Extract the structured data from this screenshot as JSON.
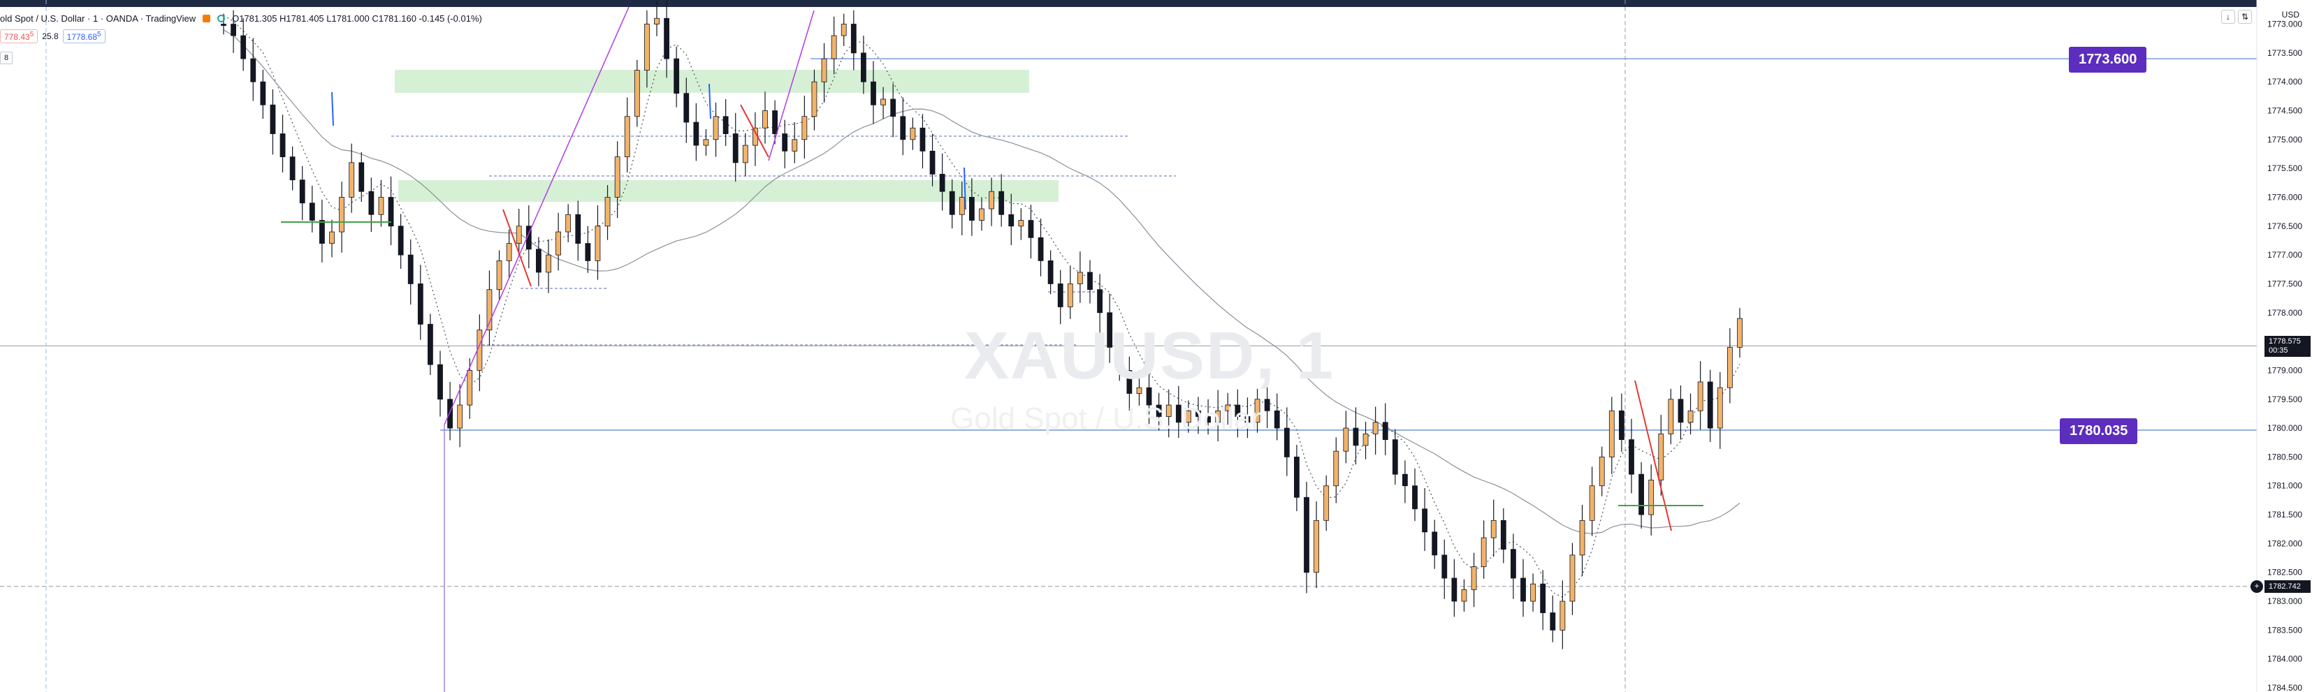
{
  "header": {
    "symbol_title": "old Spot / U.S. Dollar · 1 · OANDA · TradingView",
    "ohlc": "O1781.305  H1781.405  L1781.000  C1781.160  -0.145 (-0.01%)",
    "sell_price": "778.43",
    "sell_sup": "5",
    "spread": "25.8",
    "buy_price": "1778.68",
    "buy_sup": "5",
    "collapse_label": "8",
    "currency": "USD",
    "tools": [
      "↓",
      "⇅"
    ]
  },
  "watermark": {
    "symbol": "XAUUSD, 1",
    "description": "Gold Spot / U.S. Dollar"
  },
  "price_labels": {
    "upper_level": "1773.600",
    "lower_level": "1780.035",
    "current_price": "1778.575",
    "countdown": "00:35",
    "cursor_price": "1782.742"
  },
  "colors": {
    "up_candle": "#131722",
    "down_candle": "#131722",
    "accent_tag": "#5c2dbe",
    "level_line": "#7b9dd8",
    "supply_zone": "#d6f0d5",
    "trend_line": "#b43ce6",
    "red_line": "#e53935",
    "green_line": "#43a047",
    "blue_wick": "#2962ff"
  },
  "chart_data": {
    "type": "candlestick",
    "axis_inverted": true,
    "y_axis_ticks": [
      "1773.000",
      "1773.500",
      "1774.000",
      "1774.500",
      "1775.000",
      "1775.500",
      "1776.000",
      "1776.500",
      "1777.000",
      "1777.500",
      "1778.000",
      "1778.500",
      "1779.000",
      "1779.500",
      "1780.000",
      "1780.500",
      "1781.000",
      "1781.500",
      "1782.000",
      "1782.500",
      "1783.000",
      "1783.500",
      "1784.000",
      "1784.500"
    ],
    "ylim": [
      1772.8,
      1784.5
    ],
    "horizontal_levels": [
      {
        "price": 1773.6,
        "label": "1773.600"
      },
      {
        "price": 1780.035,
        "label": "1780.035"
      }
    ],
    "current_price": 1778.575,
    "cursor_price": 1782.742,
    "series_close": [
      1773.0,
      1773.2,
      1773.6,
      1774.0,
      1774.4,
      1774.9,
      1775.3,
      1775.7,
      1776.1,
      1776.4,
      1776.8,
      1776.6,
      1776.0,
      1775.4,
      1775.9,
      1776.3,
      1776.0,
      1776.5,
      1777.0,
      1777.5,
      1778.2,
      1778.9,
      1779.5,
      1780.0,
      1779.6,
      1779.0,
      1778.3,
      1777.6,
      1777.1,
      1776.8,
      1776.5,
      1776.9,
      1777.3,
      1777.0,
      1776.6,
      1776.3,
      1776.8,
      1777.1,
      1776.5,
      1776.0,
      1775.3,
      1774.6,
      1773.8,
      1773.0,
      1772.9,
      1773.6,
      1774.2,
      1774.7,
      1775.1,
      1775.0,
      1774.6,
      1774.9,
      1775.4,
      1775.1,
      1774.8,
      1774.5,
      1774.9,
      1775.2,
      1775.0,
      1774.6,
      1774.0,
      1773.6,
      1773.2,
      1773.0,
      1773.5,
      1774.0,
      1774.4,
      1774.3,
      1774.6,
      1775.0,
      1774.8,
      1775.2,
      1775.6,
      1775.9,
      1776.3,
      1776.0,
      1776.4,
      1776.2,
      1775.9,
      1776.3,
      1776.5,
      1776.4,
      1776.7,
      1777.1,
      1777.5,
      1777.9,
      1777.5,
      1777.3,
      1777.6,
      1778.0,
      1778.6,
      1779.0,
      1779.4,
      1779.3,
      1779.6,
      1779.8,
      1779.6,
      1779.9,
      1779.7,
      1779.8,
      1779.9,
      1779.7,
      1779.6,
      1779.8,
      1779.9,
      1779.5,
      1779.7,
      1780.0,
      1780.5,
      1781.2,
      1782.5,
      1781.6,
      1781.0,
      1780.4,
      1780.0,
      1780.3,
      1780.1,
      1779.9,
      1780.2,
      1780.8,
      1781.0,
      1781.4,
      1781.8,
      1782.2,
      1782.6,
      1783.0,
      1782.8,
      1782.4,
      1781.9,
      1781.6,
      1782.1,
      1782.6,
      1783.0,
      1782.7,
      1783.2,
      1783.5,
      1783.0,
      1782.2,
      1781.6,
      1781.0,
      1780.5,
      1779.7,
      1780.2,
      1780.8,
      1781.5,
      1780.9,
      1780.1,
      1779.5,
      1779.9,
      1779.7,
      1779.2,
      1780.0,
      1779.3,
      1778.6,
      1778.1
    ]
  }
}
